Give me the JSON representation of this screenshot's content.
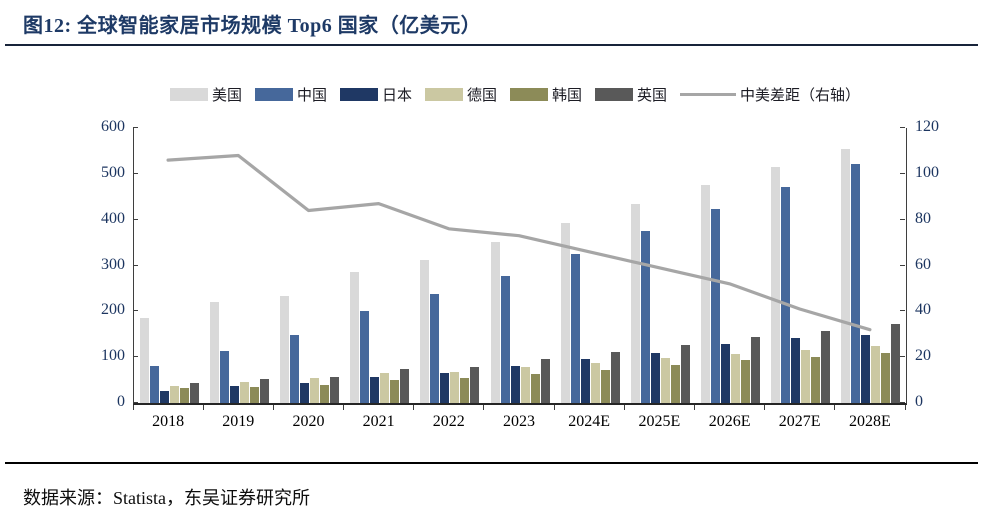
{
  "header": {
    "title": "图12:  全球智能家居市场规模 Top6 国家（亿美元）"
  },
  "footer": {
    "source": "数据来源：Statista，东吴证券研究所"
  },
  "chart_data": {
    "type": "bar",
    "title": "全球智能家居市场规模 Top6 国家（亿美元）",
    "categories": [
      "2018",
      "2019",
      "2020",
      "2021",
      "2022",
      "2023",
      "2024E",
      "2025E",
      "2026E",
      "2027E",
      "2028E"
    ],
    "series": [
      {
        "key": "us",
        "name": "美国",
        "color": "#d9d9d9",
        "values": [
          185,
          220,
          233,
          287,
          313,
          352,
          392,
          434,
          476,
          514,
          555
        ]
      },
      {
        "key": "china",
        "name": "中国",
        "color": "#46689b",
        "values": [
          80,
          113,
          149,
          200,
          237,
          278,
          326,
          375,
          424,
          472,
          522
        ]
      },
      {
        "key": "japan",
        "name": "日本",
        "color": "#1f3864",
        "values": [
          27,
          37,
          44,
          56,
          66,
          80,
          96,
          110,
          128,
          143,
          148
        ]
      },
      {
        "key": "germany",
        "name": "德国",
        "color": "#cbc8a2",
        "values": [
          38,
          45,
          54,
          66,
          68,
          79,
          88,
          99,
          108,
          115,
          125
        ]
      },
      {
        "key": "korea",
        "name": "韩国",
        "color": "#8c8b58",
        "values": [
          33,
          36,
          40,
          50,
          55,
          64,
          73,
          83,
          93,
          100,
          110
        ]
      },
      {
        "key": "uk",
        "name": "英国",
        "color": "#595959",
        "values": [
          43,
          52,
          56,
          74,
          78,
          97,
          112,
          127,
          144,
          157,
          173
        ]
      }
    ],
    "line_series": {
      "key": "us-china-gap",
      "name": "中美差距（右轴）",
      "axis": "right",
      "color": "#a6a6a6",
      "values": [
        106,
        108,
        84,
        87,
        76,
        73,
        66,
        59,
        52,
        41,
        32
      ]
    },
    "left_axis": {
      "min": 0,
      "max": 600,
      "step": 100,
      "tick_labels": [
        "600",
        "500",
        "400",
        "300",
        "200",
        "100",
        "0"
      ]
    },
    "right_axis": {
      "min": 0,
      "max": 120,
      "step": 20,
      "tick_labels": [
        "120",
        "100",
        "80",
        "60",
        "40",
        "20",
        "0"
      ]
    },
    "legend_position": "top",
    "grid": false
  }
}
